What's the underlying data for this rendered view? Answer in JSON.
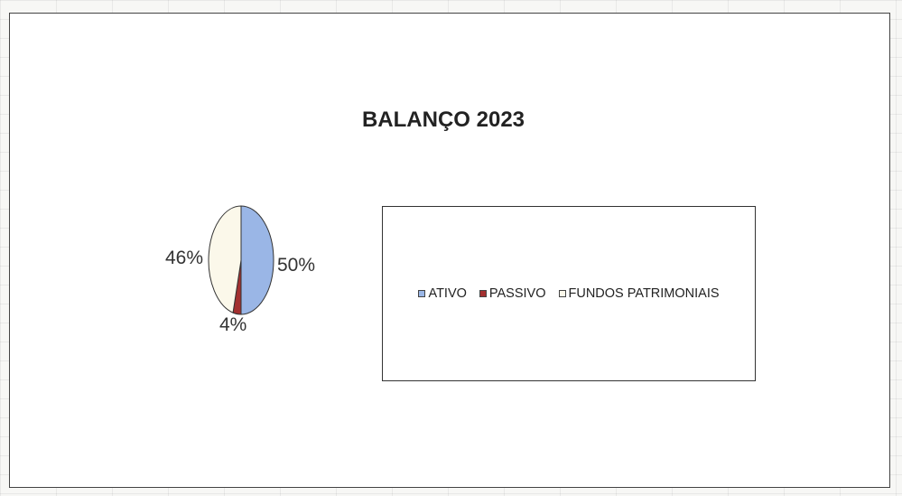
{
  "chart_data": {
    "type": "pie",
    "title": "BALANÇO 2023",
    "slices": [
      {
        "label": "ATIVO",
        "value": 50,
        "label_text": "50%",
        "color": "#9ab6e6"
      },
      {
        "label": "PASSIVO",
        "value": 4,
        "label_text": "4%",
        "color": "#a33030"
      },
      {
        "label": "FUNDOS PATRIMONIAIS",
        "value": 46,
        "label_text": "46%",
        "color": "#fbf8ea"
      }
    ],
    "legend_placement": "right",
    "grid": false
  }
}
